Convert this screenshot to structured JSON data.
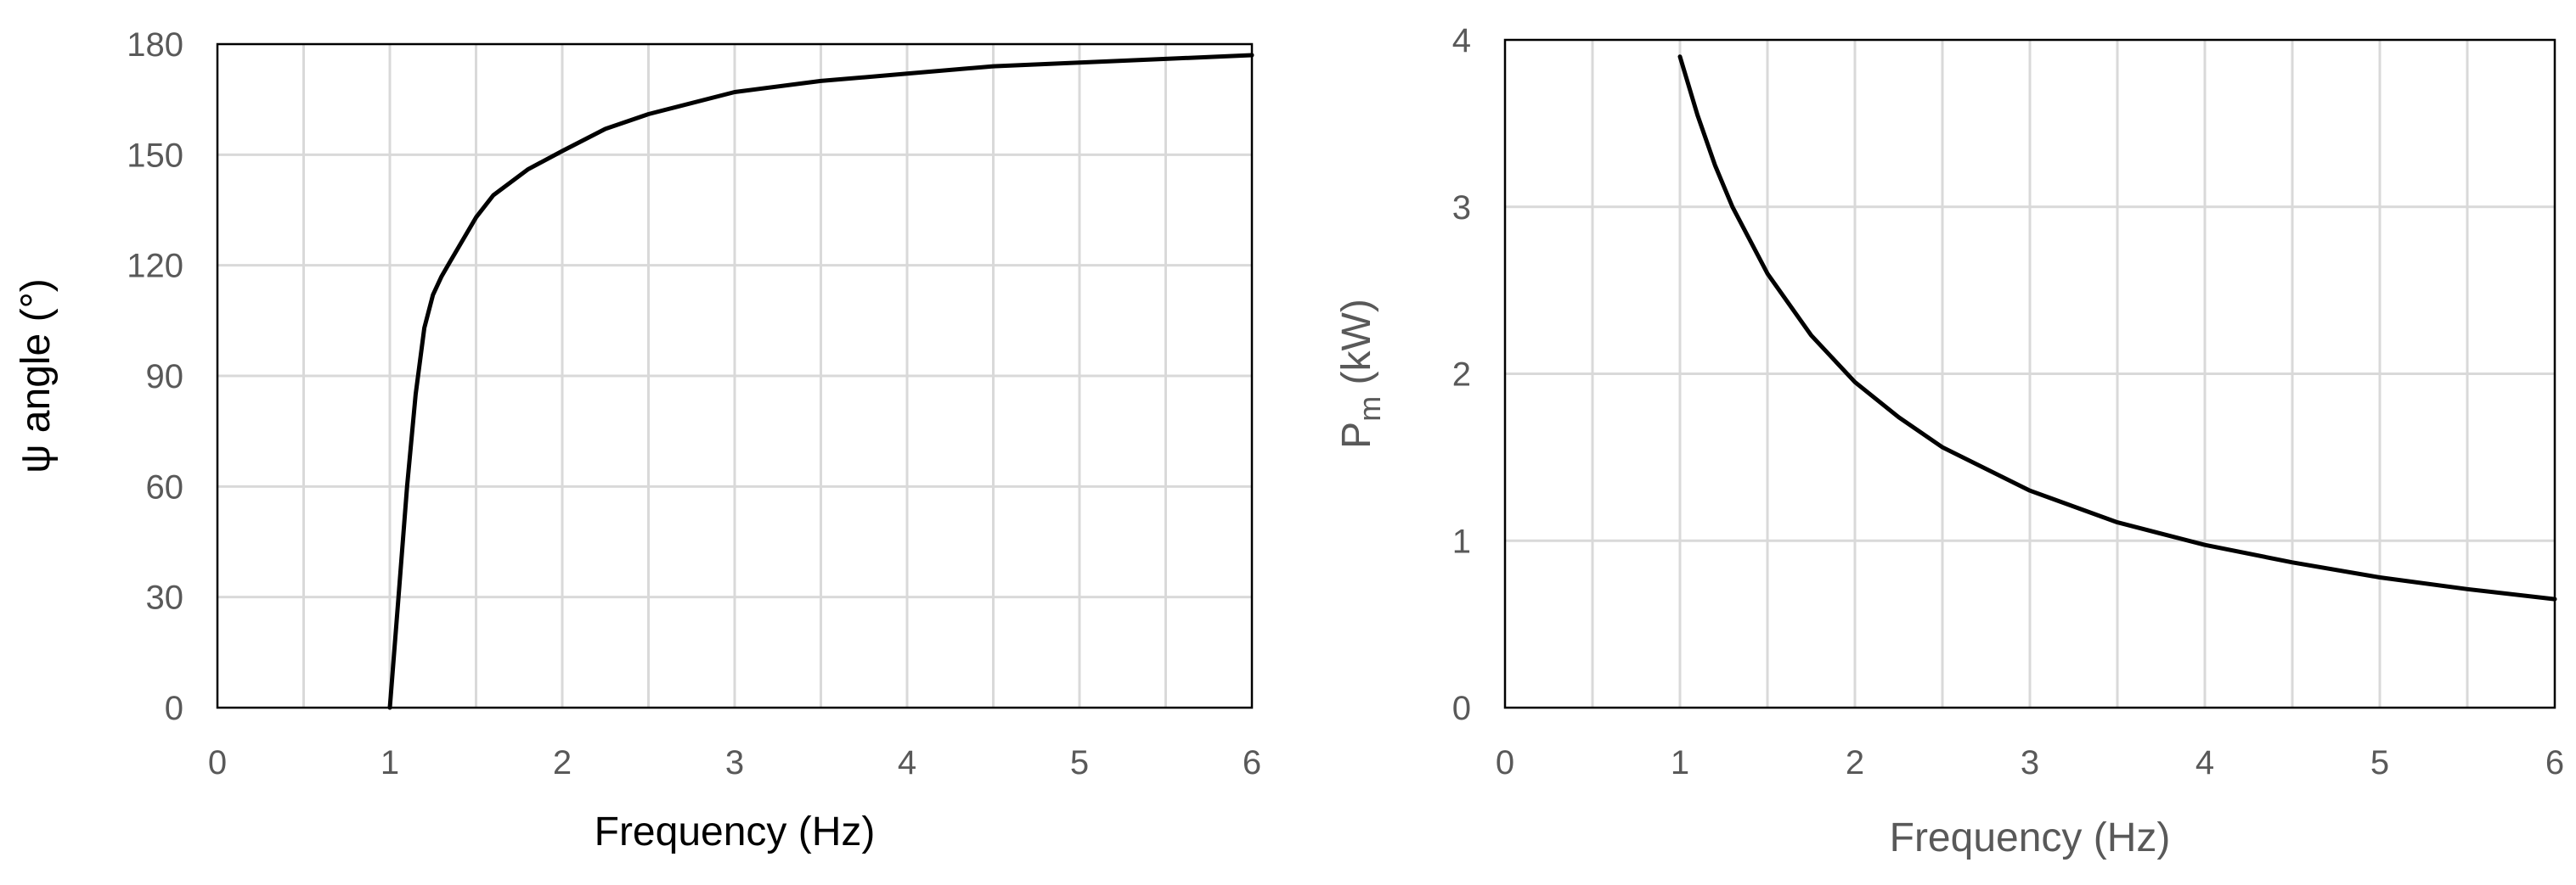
{
  "colors": {
    "line": "#000000",
    "grid": "#d9d9d9",
    "frame": "#000000",
    "tick_text_left": "#595959",
    "tick_text_right": "#595959",
    "axis_title_left": "#000000",
    "axis_title_right": "#595959"
  },
  "chart_data": [
    {
      "type": "line",
      "title": "",
      "xlabel": "Frequency (Hz)",
      "ylabel": "ψ angle (°)",
      "xlim": [
        0,
        6
      ],
      "ylim": [
        0,
        180
      ],
      "xticks": [
        "0",
        "1",
        "2",
        "3",
        "4",
        "5",
        "6"
      ],
      "yticks": [
        "0",
        "30",
        "60",
        "90",
        "120",
        "150",
        "180"
      ],
      "grid": true,
      "legend": "none",
      "series": [
        {
          "x": [
            1.0,
            1.05,
            1.1,
            1.15,
            1.2,
            1.25,
            1.3,
            1.35,
            1.4,
            1.5,
            1.6,
            1.8,
            2.0,
            2.25,
            2.5,
            3.0,
            3.5,
            4.0,
            4.5,
            5.0,
            5.5,
            6.0
          ],
          "y": [
            0,
            30,
            60,
            85,
            103,
            112,
            117,
            121,
            125,
            133,
            139,
            146,
            151,
            157,
            161,
            167,
            170,
            172,
            174,
            175,
            176,
            177
          ]
        }
      ]
    },
    {
      "type": "line",
      "title": "",
      "xlabel": "Frequency (Hz)",
      "ylabel": "P",
      "ylabel_sub": "m",
      "ylabel_unit": " (kW)",
      "xlim": [
        0,
        6
      ],
      "ylim": [
        0,
        4
      ],
      "xticks": [
        "0",
        "1",
        "2",
        "3",
        "4",
        "5",
        "6"
      ],
      "yticks": [
        "0",
        "1",
        "2",
        "3",
        "4"
      ],
      "grid": true,
      "legend": "none",
      "series": [
        {
          "x": [
            1.0,
            1.1,
            1.2,
            1.3,
            1.5,
            1.75,
            2.0,
            2.25,
            2.5,
            3.0,
            3.5,
            4.0,
            4.5,
            5.0,
            5.5,
            6.0
          ],
          "y": [
            3.9,
            3.55,
            3.25,
            3.0,
            2.6,
            2.23,
            1.95,
            1.74,
            1.56,
            1.3,
            1.11,
            0.975,
            0.87,
            0.78,
            0.71,
            0.65
          ]
        }
      ]
    }
  ]
}
